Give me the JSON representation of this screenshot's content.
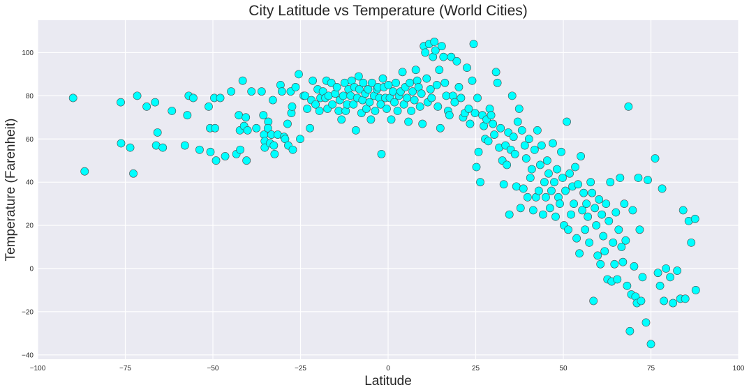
{
  "chart_data": {
    "type": "scatter",
    "title": "City Latitude vs Temperature (World Cities)",
    "xlabel": "Latitude",
    "ylabel": "Temperature (Farenheit)",
    "xlim": [
      -100,
      100
    ],
    "ylim": [
      -42,
      115
    ],
    "xticks": [
      -100,
      -75,
      -50,
      -25,
      0,
      25,
      50,
      75,
      100
    ],
    "yticks": [
      -40,
      -20,
      0,
      20,
      40,
      60,
      80,
      100
    ],
    "xtick_labels": [
      "−100",
      "−75",
      "−50",
      "−25",
      "0",
      "25",
      "50",
      "75",
      "100"
    ],
    "ytick_labels": [
      "−40",
      "−20",
      "0",
      "20",
      "40",
      "60",
      "80",
      "100"
    ],
    "grid": true,
    "background": "#eaeaf2",
    "marker_color": "#00ffff",
    "marker_edge_color": "#4a4a4a",
    "points": [
      [
        -89.9,
        79
      ],
      [
        -86.6,
        45
      ],
      [
        -76.3,
        77
      ],
      [
        -76.2,
        58
      ],
      [
        -73.6,
        56
      ],
      [
        -72.7,
        44
      ],
      [
        -71.6,
        80
      ],
      [
        -68.9,
        75
      ],
      [
        -66.5,
        77
      ],
      [
        -65.8,
        63
      ],
      [
        -66.2,
        57
      ],
      [
        -64.3,
        56
      ],
      [
        -61.7,
        73
      ],
      [
        -58.0,
        57
      ],
      [
        -57.3,
        71
      ],
      [
        -56.9,
        80
      ],
      [
        -55.6,
        79
      ],
      [
        -53.8,
        55
      ],
      [
        -51.2,
        75
      ],
      [
        -50.8,
        65
      ],
      [
        -50.7,
        54
      ],
      [
        -49.6,
        79
      ],
      [
        -49.4,
        65
      ],
      [
        -49.1,
        50
      ],
      [
        -47.9,
        79
      ],
      [
        -46.5,
        52
      ],
      [
        -44.8,
        82
      ],
      [
        -43.3,
        53
      ],
      [
        -42.6,
        71
      ],
      [
        -42.3,
        64
      ],
      [
        -42.2,
        55
      ],
      [
        -41.5,
        87
      ],
      [
        -41.1,
        66
      ],
      [
        -40.6,
        70
      ],
      [
        -40.1,
        64
      ],
      [
        -40.4,
        50
      ],
      [
        -39.0,
        82
      ],
      [
        -37.6,
        65
      ],
      [
        -36.1,
        82
      ],
      [
        -35.6,
        71
      ],
      [
        -35.4,
        62
      ],
      [
        -35.2,
        59
      ],
      [
        -35.2,
        56
      ],
      [
        -34.2,
        68
      ],
      [
        -34.3,
        65
      ],
      [
        -33.7,
        58
      ],
      [
        -33.3,
        62
      ],
      [
        -32.9,
        78
      ],
      [
        -32.6,
        57
      ],
      [
        -32.4,
        53
      ],
      [
        -31.5,
        62
      ],
      [
        -30.7,
        85
      ],
      [
        -30.3,
        82
      ],
      [
        -29.7,
        61
      ],
      [
        -29.4,
        60
      ],
      [
        -28.7,
        67
      ],
      [
        -28.5,
        57
      ],
      [
        -27.8,
        82
      ],
      [
        -27.6,
        72
      ],
      [
        -27.2,
        55
      ],
      [
        -27.4,
        75
      ],
      [
        -26.4,
        84
      ],
      [
        -25.5,
        90
      ],
      [
        -25.1,
        60
      ],
      [
        -24.1,
        80
      ],
      [
        -23.7,
        80
      ],
      [
        -23.1,
        74
      ],
      [
        -22.3,
        65
      ],
      [
        -21.9,
        78
      ],
      [
        -21.5,
        87
      ],
      [
        -20.7,
        76
      ],
      [
        -20.1,
        83
      ],
      [
        -19.6,
        73
      ],
      [
        -19.3,
        79
      ],
      [
        -18.6,
        82
      ],
      [
        -17.9,
        79
      ],
      [
        -17.6,
        87
      ],
      [
        -17.3,
        74
      ],
      [
        -17.0,
        80
      ],
      [
        -16.2,
        86
      ],
      [
        -15.9,
        76
      ],
      [
        -15.1,
        81
      ],
      [
        -14.6,
        84
      ],
      [
        -14.1,
        73
      ],
      [
        -13.8,
        78
      ],
      [
        -13.3,
        69
      ],
      [
        -12.8,
        80
      ],
      [
        -12.4,
        86
      ],
      [
        -12.1,
        73
      ],
      [
        -11.7,
        76
      ],
      [
        -11.3,
        83
      ],
      [
        -10.7,
        80
      ],
      [
        -10.4,
        87
      ],
      [
        -9.9,
        76
      ],
      [
        -9.6,
        84
      ],
      [
        -9.2,
        64
      ],
      [
        -8.8,
        79
      ],
      [
        -8.4,
        89
      ],
      [
        -8.2,
        83
      ],
      [
        -7.6,
        72
      ],
      [
        -7.3,
        78
      ],
      [
        -7.1,
        86
      ],
      [
        -6.5,
        81
      ],
      [
        -6.2,
        74
      ],
      [
        -5.7,
        83
      ],
      [
        -5.3,
        77
      ],
      [
        -4.9,
        69
      ],
      [
        -4.6,
        86
      ],
      [
        -4.0,
        80
      ],
      [
        -3.7,
        73
      ],
      [
        -3.2,
        83
      ],
      [
        -2.9,
        84
      ],
      [
        -2.5,
        79
      ],
      [
        -2.1,
        76
      ],
      [
        -1.9,
        53
      ],
      [
        -1.5,
        88
      ],
      [
        -1.2,
        84
      ],
      [
        -0.8,
        79
      ],
      [
        -0.4,
        74
      ],
      [
        0.1,
        85
      ],
      [
        0.5,
        79
      ],
      [
        0.9,
        69
      ],
      [
        1.4,
        82
      ],
      [
        1.8,
        77
      ],
      [
        2.2,
        86
      ],
      [
        2.7,
        73
      ],
      [
        3.1,
        80
      ],
      [
        3.6,
        82
      ],
      [
        4.1,
        91
      ],
      [
        4.5,
        76
      ],
      [
        4.9,
        84
      ],
      [
        5.4,
        79
      ],
      [
        5.8,
        68
      ],
      [
        6.2,
        86
      ],
      [
        6.6,
        73
      ],
      [
        7.0,
        82
      ],
      [
        7.5,
        78
      ],
      [
        7.9,
        92
      ],
      [
        8.3,
        87
      ],
      [
        8.7,
        84
      ],
      [
        9.1,
        75
      ],
      [
        9.5,
        81
      ],
      [
        9.8,
        67
      ],
      [
        10.2,
        103
      ],
      [
        10.6,
        100
      ],
      [
        11.0,
        88
      ],
      [
        11.3,
        77
      ],
      [
        11.7,
        104
      ],
      [
        12.1,
        83
      ],
      [
        12.4,
        79
      ],
      [
        12.8,
        98
      ],
      [
        13.2,
        105
      ],
      [
        13.5,
        101
      ],
      [
        13.9,
        85
      ],
      [
        14.2,
        75
      ],
      [
        14.6,
        92
      ],
      [
        14.9,
        65
      ],
      [
        15.3,
        103
      ],
      [
        15.8,
        98
      ],
      [
        16.2,
        86
      ],
      [
        16.6,
        80
      ],
      [
        17.1,
        73
      ],
      [
        17.5,
        71
      ],
      [
        18.0,
        98
      ],
      [
        18.5,
        80
      ],
      [
        19.0,
        77
      ],
      [
        19.6,
        96
      ],
      [
        20.2,
        84
      ],
      [
        20.8,
        79
      ],
      [
        21.4,
        70
      ],
      [
        21.9,
        72
      ],
      [
        22.5,
        93
      ],
      [
        23.0,
        74
      ],
      [
        23.4,
        67
      ],
      [
        24.0,
        87
      ],
      [
        24.4,
        104
      ],
      [
        24.8,
        72
      ],
      [
        25.2,
        47
      ],
      [
        25.5,
        79
      ],
      [
        25.8,
        54
      ],
      [
        26.3,
        40
      ],
      [
        26.9,
        71
      ],
      [
        27.3,
        66
      ],
      [
        27.7,
        60
      ],
      [
        28.1,
        69
      ],
      [
        28.6,
        59
      ],
      [
        29.0,
        74
      ],
      [
        29.4,
        71
      ],
      [
        29.9,
        67
      ],
      [
        30.3,
        62
      ],
      [
        30.8,
        91
      ],
      [
        31.2,
        86
      ],
      [
        31.7,
        56
      ],
      [
        32.1,
        65
      ],
      [
        32.6,
        50
      ],
      [
        33.0,
        39
      ],
      [
        33.5,
        57
      ],
      [
        33.9,
        48
      ],
      [
        34.3,
        63
      ],
      [
        34.6,
        25
      ],
      [
        35.0,
        55
      ],
      [
        35.4,
        80
      ],
      [
        35.8,
        61
      ],
      [
        36.2,
        53
      ],
      [
        36.6,
        38
      ],
      [
        37.0,
        68
      ],
      [
        37.4,
        74
      ],
      [
        37.8,
        28
      ],
      [
        38.2,
        64
      ],
      [
        38.6,
        37
      ],
      [
        39.0,
        57
      ],
      [
        39.4,
        51
      ],
      [
        39.8,
        33
      ],
      [
        40.2,
        60
      ],
      [
        40.6,
        42
      ],
      [
        41.0,
        46
      ],
      [
        41.4,
        27
      ],
      [
        41.8,
        55
      ],
      [
        42.2,
        33
      ],
      [
        42.6,
        64
      ],
      [
        43.0,
        36
      ],
      [
        43.4,
        48
      ],
      [
        43.8,
        57
      ],
      [
        44.2,
        25
      ],
      [
        44.6,
        40
      ],
      [
        45.0,
        33
      ],
      [
        45.4,
        50
      ],
      [
        45.8,
        44
      ],
      [
        46.2,
        28
      ],
      [
        46.6,
        36
      ],
      [
        47.0,
        58
      ],
      [
        47.4,
        40
      ],
      [
        47.8,
        24
      ],
      [
        48.2,
        46
      ],
      [
        48.6,
        33
      ],
      [
        49.0,
        30
      ],
      [
        49.4,
        54
      ],
      [
        49.8,
        42
      ],
      [
        50.2,
        20
      ],
      [
        50.6,
        36
      ],
      [
        51.0,
        68
      ],
      [
        51.4,
        18
      ],
      [
        51.8,
        44
      ],
      [
        52.2,
        25
      ],
      [
        52.6,
        38
      ],
      [
        53.0,
        30
      ],
      [
        53.4,
        47
      ],
      [
        53.8,
        14
      ],
      [
        54.2,
        39
      ],
      [
        54.6,
        7
      ],
      [
        55.0,
        52
      ],
      [
        55.4,
        27
      ],
      [
        55.8,
        35
      ],
      [
        56.2,
        18
      ],
      [
        56.6,
        30
      ],
      [
        57.0,
        24
      ],
      [
        57.4,
        12
      ],
      [
        57.8,
        40
      ],
      [
        58.2,
        35
      ],
      [
        58.6,
        -15
      ],
      [
        59.0,
        28
      ],
      [
        59.4,
        20
      ],
      [
        59.8,
        6
      ],
      [
        60.2,
        32
      ],
      [
        60.6,
        2
      ],
      [
        61.0,
        25
      ],
      [
        61.4,
        15
      ],
      [
        61.8,
        8
      ],
      [
        62.2,
        30
      ],
      [
        62.6,
        -5
      ],
      [
        63.0,
        22
      ],
      [
        63.4,
        40
      ],
      [
        63.8,
        -6
      ],
      [
        64.2,
        12
      ],
      [
        64.6,
        2
      ],
      [
        65.0,
        26
      ],
      [
        65.4,
        -5
      ],
      [
        65.8,
        18
      ],
      [
        66.2,
        42
      ],
      [
        66.6,
        10
      ],
      [
        67.0,
        3
      ],
      [
        67.4,
        30
      ],
      [
        67.8,
        13
      ],
      [
        68.2,
        -8
      ],
      [
        68.6,
        75
      ],
      [
        69.0,
        -29
      ],
      [
        69.4,
        -12
      ],
      [
        69.8,
        27
      ],
      [
        70.2,
        1
      ],
      [
        70.6,
        -13
      ],
      [
        71.0,
        -16
      ],
      [
        71.4,
        42
      ],
      [
        71.8,
        18
      ],
      [
        72.2,
        -15
      ],
      [
        72.6,
        -4
      ],
      [
        73.6,
        -25
      ],
      [
        74.1,
        41
      ],
      [
        75.0,
        -35
      ],
      [
        76.2,
        51
      ],
      [
        77.0,
        -2
      ],
      [
        77.6,
        -8
      ],
      [
        78.2,
        37
      ],
      [
        78.7,
        -15
      ],
      [
        79.3,
        0
      ],
      [
        80.5,
        -4
      ],
      [
        81.3,
        -16
      ],
      [
        82.5,
        -1
      ],
      [
        83.4,
        -14
      ],
      [
        84.2,
        27
      ],
      [
        84.8,
        -14
      ],
      [
        85.8,
        22
      ],
      [
        86.5,
        12
      ],
      [
        87.6,
        23
      ],
      [
        87.8,
        -10
      ]
    ]
  }
}
